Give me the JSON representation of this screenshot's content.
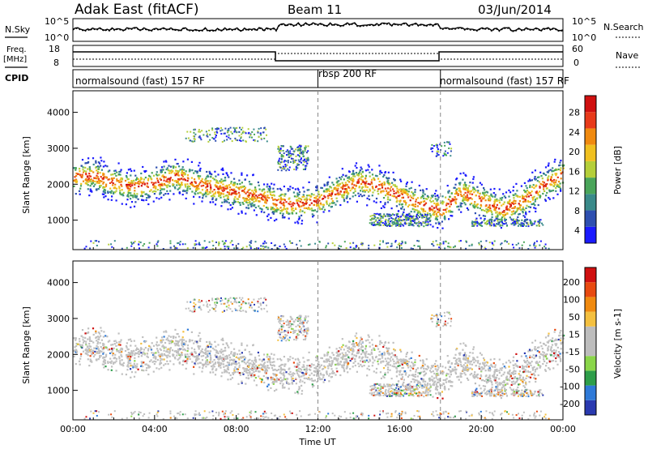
{
  "header": {
    "site": "Adak East (fitACF)",
    "beam": "Beam 11",
    "date": "03/Jun/2014"
  },
  "left_labels": {
    "nsky": "N.Sky",
    "freq": "Freq.",
    "freq_unit": "[MHz]",
    "cpid": "CPID"
  },
  "right_labels": {
    "nsearch": "N.Search",
    "nave": "Nave"
  },
  "ticks": {
    "noise_left_top": "10^5",
    "noise_left_bottom": "10^0",
    "noise_right_top": "10^5",
    "noise_right_bottom": "10^0",
    "freq_top": "18",
    "freq_bottom": "8",
    "nave_top": "60",
    "nave_bottom": "0"
  },
  "cpid_segments": [
    "normalsound (fast) 157 RF",
    "rbsp 200 RF",
    "normalsound (fast) 157 RF"
  ],
  "colors": {
    "power_scale": [
      "#1a1aff",
      "#2e4fb0",
      "#3a8a8a",
      "#4aa55a",
      "#b5cf3a",
      "#f0c020",
      "#f08a10",
      "#e83a1a",
      "#d01010"
    ],
    "velocity_scale": [
      "#2a3ab0",
      "#2f7ad8",
      "#2e9e4a",
      "#8ad64a",
      "#bdbdbd",
      "#bdbdbd",
      "#f4c040",
      "#f08a10",
      "#e84a10",
      "#d01010"
    ],
    "ground_scatter": "#c0c0c0"
  },
  "power_colorbar": {
    "label": "Power [dB]",
    "ticks": [
      "28",
      "24",
      "20",
      "16",
      "12",
      "8",
      "4"
    ]
  },
  "velocity_colorbar": {
    "label": "Velocity [m s-1]",
    "ticks": [
      "200",
      "100",
      "50",
      "15",
      "-15",
      "-50",
      "-100",
      "-200"
    ]
  },
  "chart_data": [
    {
      "type": "heatmap",
      "panel": "power",
      "ylabel": "Slant Range [km]",
      "xlabel": "Time UT",
      "x_ticks": [
        "00:00",
        "04:00",
        "08:00",
        "12:00",
        "16:00",
        "20:00",
        "00:00"
      ],
      "y_ticks": [
        1000,
        2000,
        3000,
        4000
      ],
      "ylim": [
        180,
        4600
      ],
      "xlim_hours": [
        0,
        24
      ],
      "zlim": [
        0,
        30
      ],
      "band_center_km": [
        [
          0,
          2200
        ],
        [
          1,
          2250
        ],
        [
          2,
          2050
        ],
        [
          3,
          1950
        ],
        [
          4,
          2050
        ],
        [
          5,
          2250
        ],
        [
          6,
          2050
        ],
        [
          7,
          1900
        ],
        [
          8,
          1800
        ],
        [
          9,
          1700
        ],
        [
          10,
          1500
        ],
        [
          11,
          1450
        ],
        [
          12,
          1550
        ],
        [
          13,
          1850
        ],
        [
          14,
          2100
        ],
        [
          15,
          1950
        ],
        [
          16,
          1700
        ],
        [
          17,
          1450
        ],
        [
          18,
          1300
        ],
        [
          19,
          1800
        ],
        [
          20,
          1550
        ],
        [
          21,
          1300
        ],
        [
          22,
          1550
        ],
        [
          23,
          2000
        ],
        [
          24,
          2300
        ]
      ]
    },
    {
      "type": "heatmap",
      "panel": "velocity",
      "ylabel": "Slant Range [km]",
      "xlabel": "Time UT",
      "x_ticks": [
        "00:00",
        "04:00",
        "08:00",
        "12:00",
        "16:00",
        "20:00",
        "00:00"
      ],
      "y_ticks": [
        1000,
        2000,
        3000,
        4000
      ],
      "ylim": [
        180,
        4600
      ],
      "xlim_hours": [
        0,
        24
      ],
      "zlim": [
        -200,
        200
      ]
    }
  ]
}
